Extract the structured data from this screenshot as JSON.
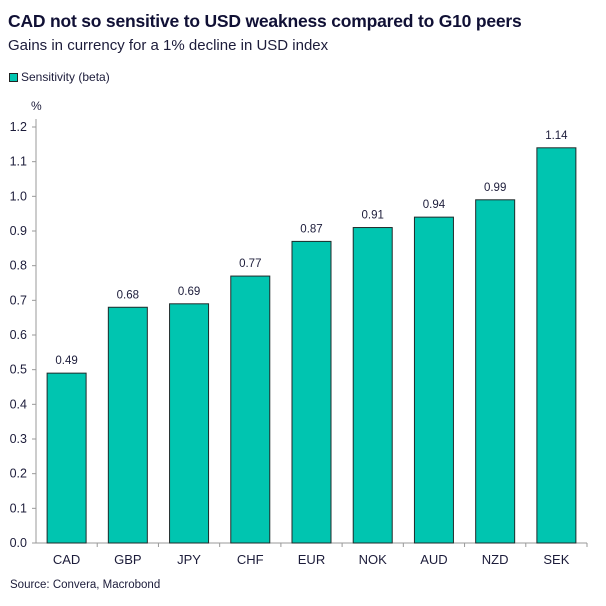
{
  "chart_data": {
    "type": "bar",
    "title": "CAD not so sensitive to USD weakness compared to G10 peers",
    "subtitle": "Gains in currency for a 1% decline in USD index",
    "ylabel": "%",
    "xlabel": "",
    "categories": [
      "CAD",
      "GBP",
      "JPY",
      "CHF",
      "EUR",
      "NOK",
      "AUD",
      "NZD",
      "SEK"
    ],
    "series": [
      {
        "name": "Sensitivity (beta)",
        "values": [
          0.49,
          0.68,
          0.69,
          0.77,
          0.87,
          0.91,
          0.94,
          0.99,
          1.14
        ],
        "color": "#00c5b0"
      }
    ],
    "data_labels": [
      "0.49",
      "0.68",
      "0.69",
      "0.77",
      "0.87",
      "0.91",
      "0.94",
      "0.99",
      "1.14"
    ],
    "ylim": [
      0,
      1.2
    ],
    "yticks": [
      "0.0",
      "0.1",
      "0.2",
      "0.3",
      "0.4",
      "0.5",
      "0.6",
      "0.7",
      "0.8",
      "0.9",
      "1.0",
      "1.1",
      "1.2"
    ],
    "grid": false,
    "legend": "top-left",
    "source": "Source: Convera, Macrobond"
  }
}
